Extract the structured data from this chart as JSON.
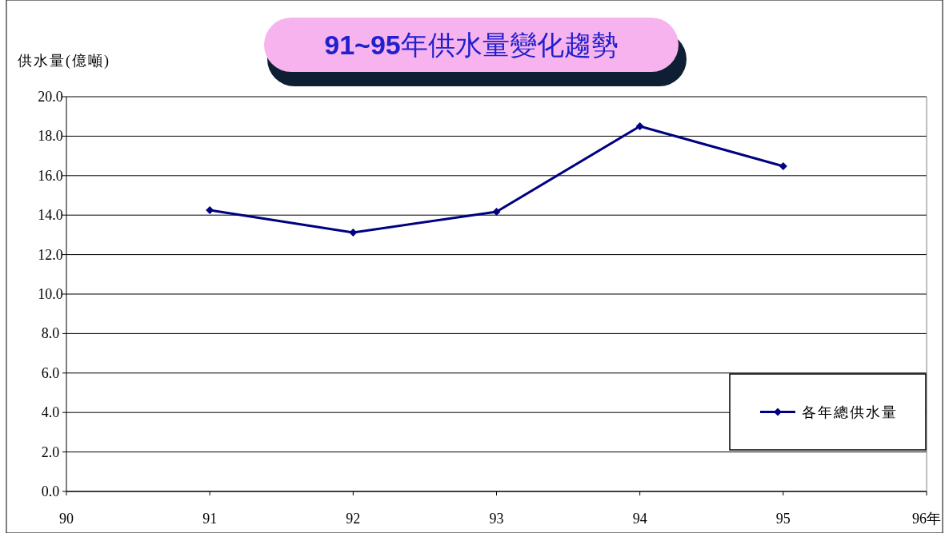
{
  "chart_data": {
    "type": "line",
    "title": "**91~95**年供水量變化趨勢",
    "ylabel": "供水量(億噸)",
    "x": [
      91,
      92,
      93,
      94,
      95
    ],
    "series": [
      {
        "name": "各年總供水量",
        "color": "#000080",
        "values": [
          14.25,
          13.12,
          14.17,
          18.5,
          16.48
        ]
      }
    ],
    "xlim": [
      90,
      96
    ],
    "xticks": [
      90,
      91,
      92,
      93,
      94,
      95,
      {
        "value": 96,
        "label": "96年"
      }
    ],
    "ylim": [
      0,
      20
    ],
    "yticks": [
      {
        "value": 0,
        "label": "0.0"
      },
      {
        "value": 2,
        "label": "2.0"
      },
      {
        "value": 4,
        "label": "4.0"
      },
      {
        "value": 6,
        "label": "6.0"
      },
      {
        "value": 8,
        "label": "8.0"
      },
      {
        "value": 10,
        "label": "10.0"
      },
      {
        "value": 12,
        "label": "12.0"
      },
      {
        "value": 14,
        "label": "14.0"
      },
      {
        "value": 16,
        "label": "16.0"
      },
      {
        "value": 18,
        "label": "18.0"
      },
      {
        "value": 20,
        "label": "20.0"
      }
    ],
    "grid": "y",
    "legend": "bottom right",
    "marker": "diamond",
    "line_style": "solid"
  }
}
